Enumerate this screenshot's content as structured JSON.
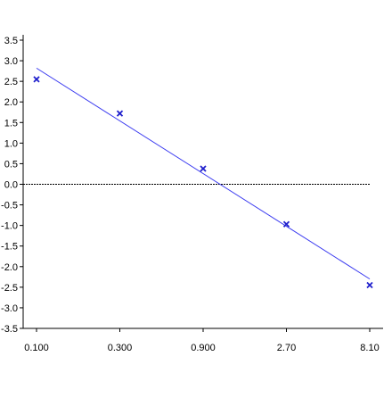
{
  "chart_data": {
    "type": "scatter",
    "title": "",
    "xlabel": "",
    "ylabel": "",
    "x_scale": "log",
    "x_ticks": [
      0.1,
      0.3,
      0.9,
      2.7,
      8.1
    ],
    "x_tick_labels": [
      "0.100",
      "0.300",
      "0.900",
      "2.70",
      "8.10"
    ],
    "ylim": [
      -3.5,
      3.5
    ],
    "y_ticks": [
      3.5,
      3.0,
      2.5,
      2.0,
      1.5,
      1.0,
      0.5,
      0.0,
      -0.5,
      -1.0,
      -1.5,
      -2.0,
      -2.5,
      -3.0,
      -3.5
    ],
    "y_tick_labels": [
      "3.5",
      "3.0",
      "2.5",
      "2.0",
      "1.5",
      "1.0",
      "0.5",
      "0.0",
      "-0.5",
      "-1.0",
      "-1.5",
      "-2.0",
      "-2.5",
      "-3.0",
      "-3.5"
    ],
    "grid": false,
    "reference_line_y": 0.0,
    "points": [
      {
        "x": 0.1,
        "y": 2.55
      },
      {
        "x": 0.3,
        "y": 1.72
      },
      {
        "x": 0.9,
        "y": 0.38
      },
      {
        "x": 2.7,
        "y": -0.97
      },
      {
        "x": 8.1,
        "y": -2.45
      }
    ],
    "fit_line": {
      "x": [
        0.1,
        8.1
      ],
      "y": [
        2.82,
        -2.3
      ]
    },
    "colors": {
      "points": "#1f1fcc",
      "fit": "#3a3af0",
      "axes": "#000000",
      "reference": "#000000"
    }
  }
}
